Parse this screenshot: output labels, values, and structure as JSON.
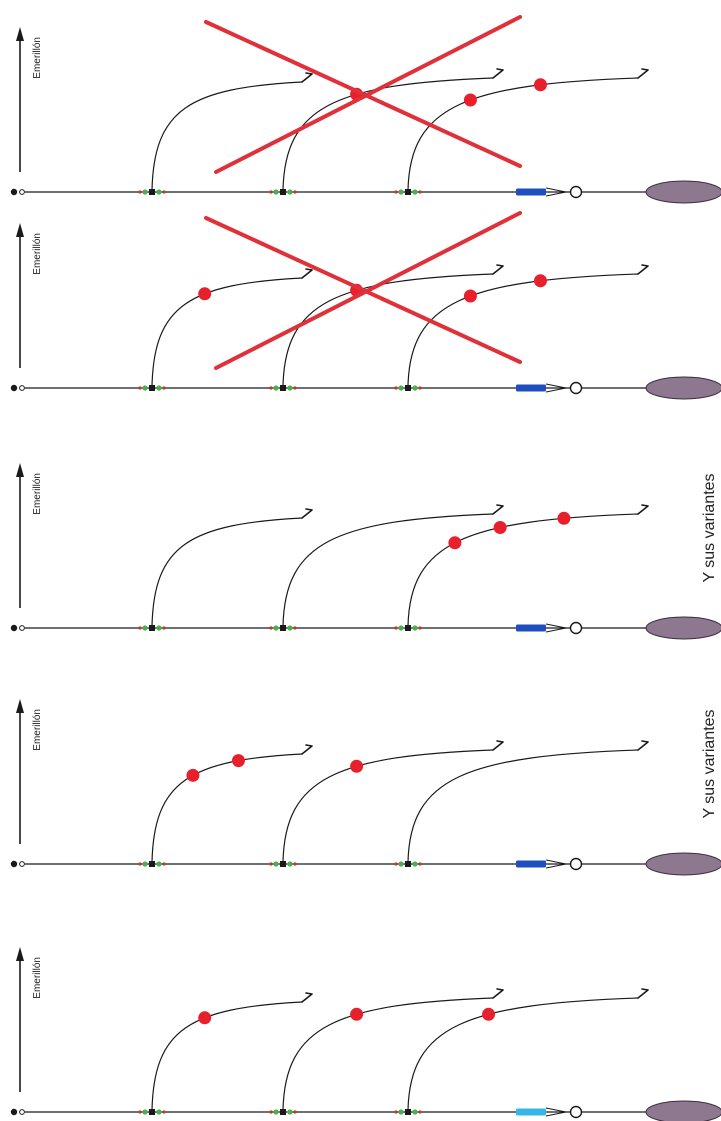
{
  "colors": {
    "line": "#1a1a1a",
    "bead": "#e8202c",
    "cross": "#e0303a",
    "connector_green": "#4caf50",
    "connector_red": "#c0392b",
    "swivel_blue": "#1f4fbf",
    "swivel_light_blue": "#35b6e6",
    "sinker": "#8e7890",
    "sinker_outline": "#3a2f3c"
  },
  "panels": [
    {
      "id": "panel-1",
      "label": "Emerillón",
      "crossed": true,
      "beads_per_leader": [
        0,
        1,
        2
      ],
      "variant_text": ""
    },
    {
      "id": "panel-2",
      "label": "Emerillón",
      "crossed": true,
      "beads_per_leader": [
        1,
        1,
        2
      ],
      "variant_text": ""
    },
    {
      "id": "panel-3",
      "label": "Emerillón",
      "crossed": false,
      "beads_per_leader": [
        0,
        0,
        3
      ],
      "variant_text": "Y sus variantes"
    },
    {
      "id": "panel-4",
      "label": "Emerillón",
      "crossed": false,
      "beads_per_leader": [
        2,
        1,
        0
      ],
      "variant_text": "Y sus variantes"
    },
    {
      "id": "panel-5",
      "label": "Emerillón",
      "crossed": false,
      "beads_per_leader": [
        1,
        1,
        1
      ],
      "variant_text": ""
    }
  ],
  "icons": {
    "arrow": "arrow-up-icon",
    "hook": "fishing-hook-icon",
    "sinker": "sinker-icon",
    "swivel": "swivel-icon",
    "bead": "bead-icon",
    "cross": "cross-mark-icon"
  }
}
